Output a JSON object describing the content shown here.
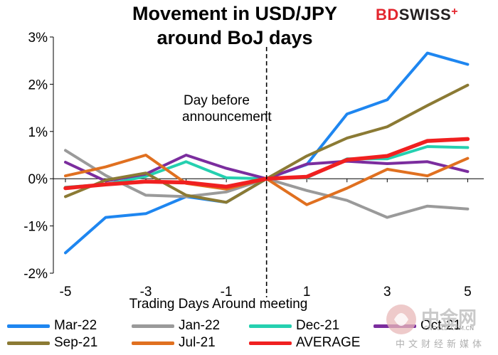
{
  "header": {
    "title_line1": "Movement in USD/JPY",
    "title_line2": "around BoJ days"
  },
  "logo": {
    "bd": "BD",
    "swiss": "SWISS",
    "plus": "+"
  },
  "chart_data": {
    "type": "line",
    "title": "Movement in USD/JPY around BoJ days",
    "xlabel": "Trading Days Around meeting",
    "ylabel": "",
    "x": [
      -5,
      -4,
      -3,
      -2,
      -1,
      0,
      1,
      2,
      3,
      4,
      5
    ],
    "xticks": [
      -5,
      -3,
      -1,
      1,
      3,
      5
    ],
    "xtick_labels": [
      "-5",
      "-3",
      "-1",
      "1",
      "3",
      "5"
    ],
    "xlim": [
      -5,
      5
    ],
    "ylim": [
      -2,
      3
    ],
    "yticks": [
      -2,
      -1,
      0,
      1,
      2,
      3
    ],
    "ytick_labels": [
      "-2%",
      "-1%",
      "0%",
      "1%",
      "2%",
      "3%"
    ],
    "grid": false,
    "annotation": {
      "text_line1": "Day before",
      "text_line2": "announcement",
      "x": 0
    },
    "series": [
      {
        "name": "Mar-22",
        "color": "#1e86f0",
        "values": [
          -1.57,
          -0.82,
          -0.74,
          -0.38,
          -0.5,
          0.0,
          0.3,
          1.37,
          1.67,
          2.66,
          2.42
        ]
      },
      {
        "name": "Jan-22",
        "color": "#9a9a9a",
        "values": [
          0.6,
          0.07,
          -0.35,
          -0.38,
          -0.28,
          0.0,
          -0.25,
          -0.46,
          -0.82,
          -0.58,
          -0.64
        ]
      },
      {
        "name": "Dec-21",
        "color": "#25d0b0",
        "values": [
          -0.18,
          -0.12,
          0.05,
          0.36,
          0.02,
          0.0,
          0.02,
          0.42,
          0.42,
          0.68,
          0.66
        ]
      },
      {
        "name": "Oct-21",
        "color": "#7b2d9e",
        "values": [
          0.35,
          -0.05,
          0.1,
          0.5,
          0.22,
          0.0,
          0.31,
          0.37,
          0.32,
          0.36,
          0.15
        ]
      },
      {
        "name": "Sep-21",
        "color": "#8b7a34",
        "values": [
          -0.38,
          -0.03,
          0.12,
          -0.35,
          -0.5,
          0.0,
          0.48,
          0.86,
          1.1,
          1.55,
          1.98
        ]
      },
      {
        "name": "Jul-21",
        "color": "#e07020",
        "values": [
          0.06,
          0.25,
          0.5,
          -0.1,
          -0.22,
          0.0,
          -0.55,
          -0.2,
          0.2,
          0.06,
          0.43
        ]
      },
      {
        "name": "AVERAGE",
        "color": "#f02020",
        "values": [
          -0.2,
          -0.12,
          -0.06,
          -0.08,
          -0.17,
          0.0,
          0.04,
          0.4,
          0.48,
          0.8,
          0.84
        ]
      }
    ]
  },
  "watermark": {
    "brand": "中金网",
    "url": "CNGOLD.COM.CN",
    "tagline": "中文财经新媒体"
  }
}
